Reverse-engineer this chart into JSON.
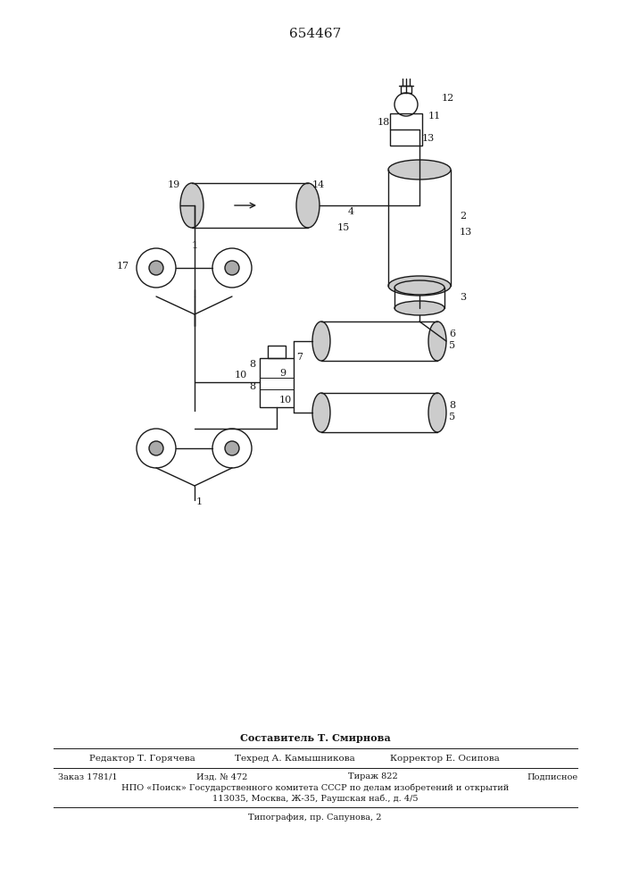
{
  "title": "654467",
  "bg_color": "#ffffff",
  "line_color": "#1a1a1a",
  "footer": {
    "line1_label": "Составитель Т. Смирнова",
    "line2_left": "Редактор Т. Горячева",
    "line2_center": "Техред А. Камышникова",
    "line2_right": "Корректор Е. Осипова",
    "line3_left": "Заказ 1781/1",
    "line3_center1": "Изд. № 472",
    "line3_center2": "Тираж 822",
    "line3_right": "Подписное",
    "line4": "НПО «Поиск» Государственного комитета СССР по делам изобретений и открытий",
    "line5": "113035, Москва, Ж-35, Раушская наб., д. 4/5",
    "line6": "Типография, пр. Сапунова, 2"
  }
}
